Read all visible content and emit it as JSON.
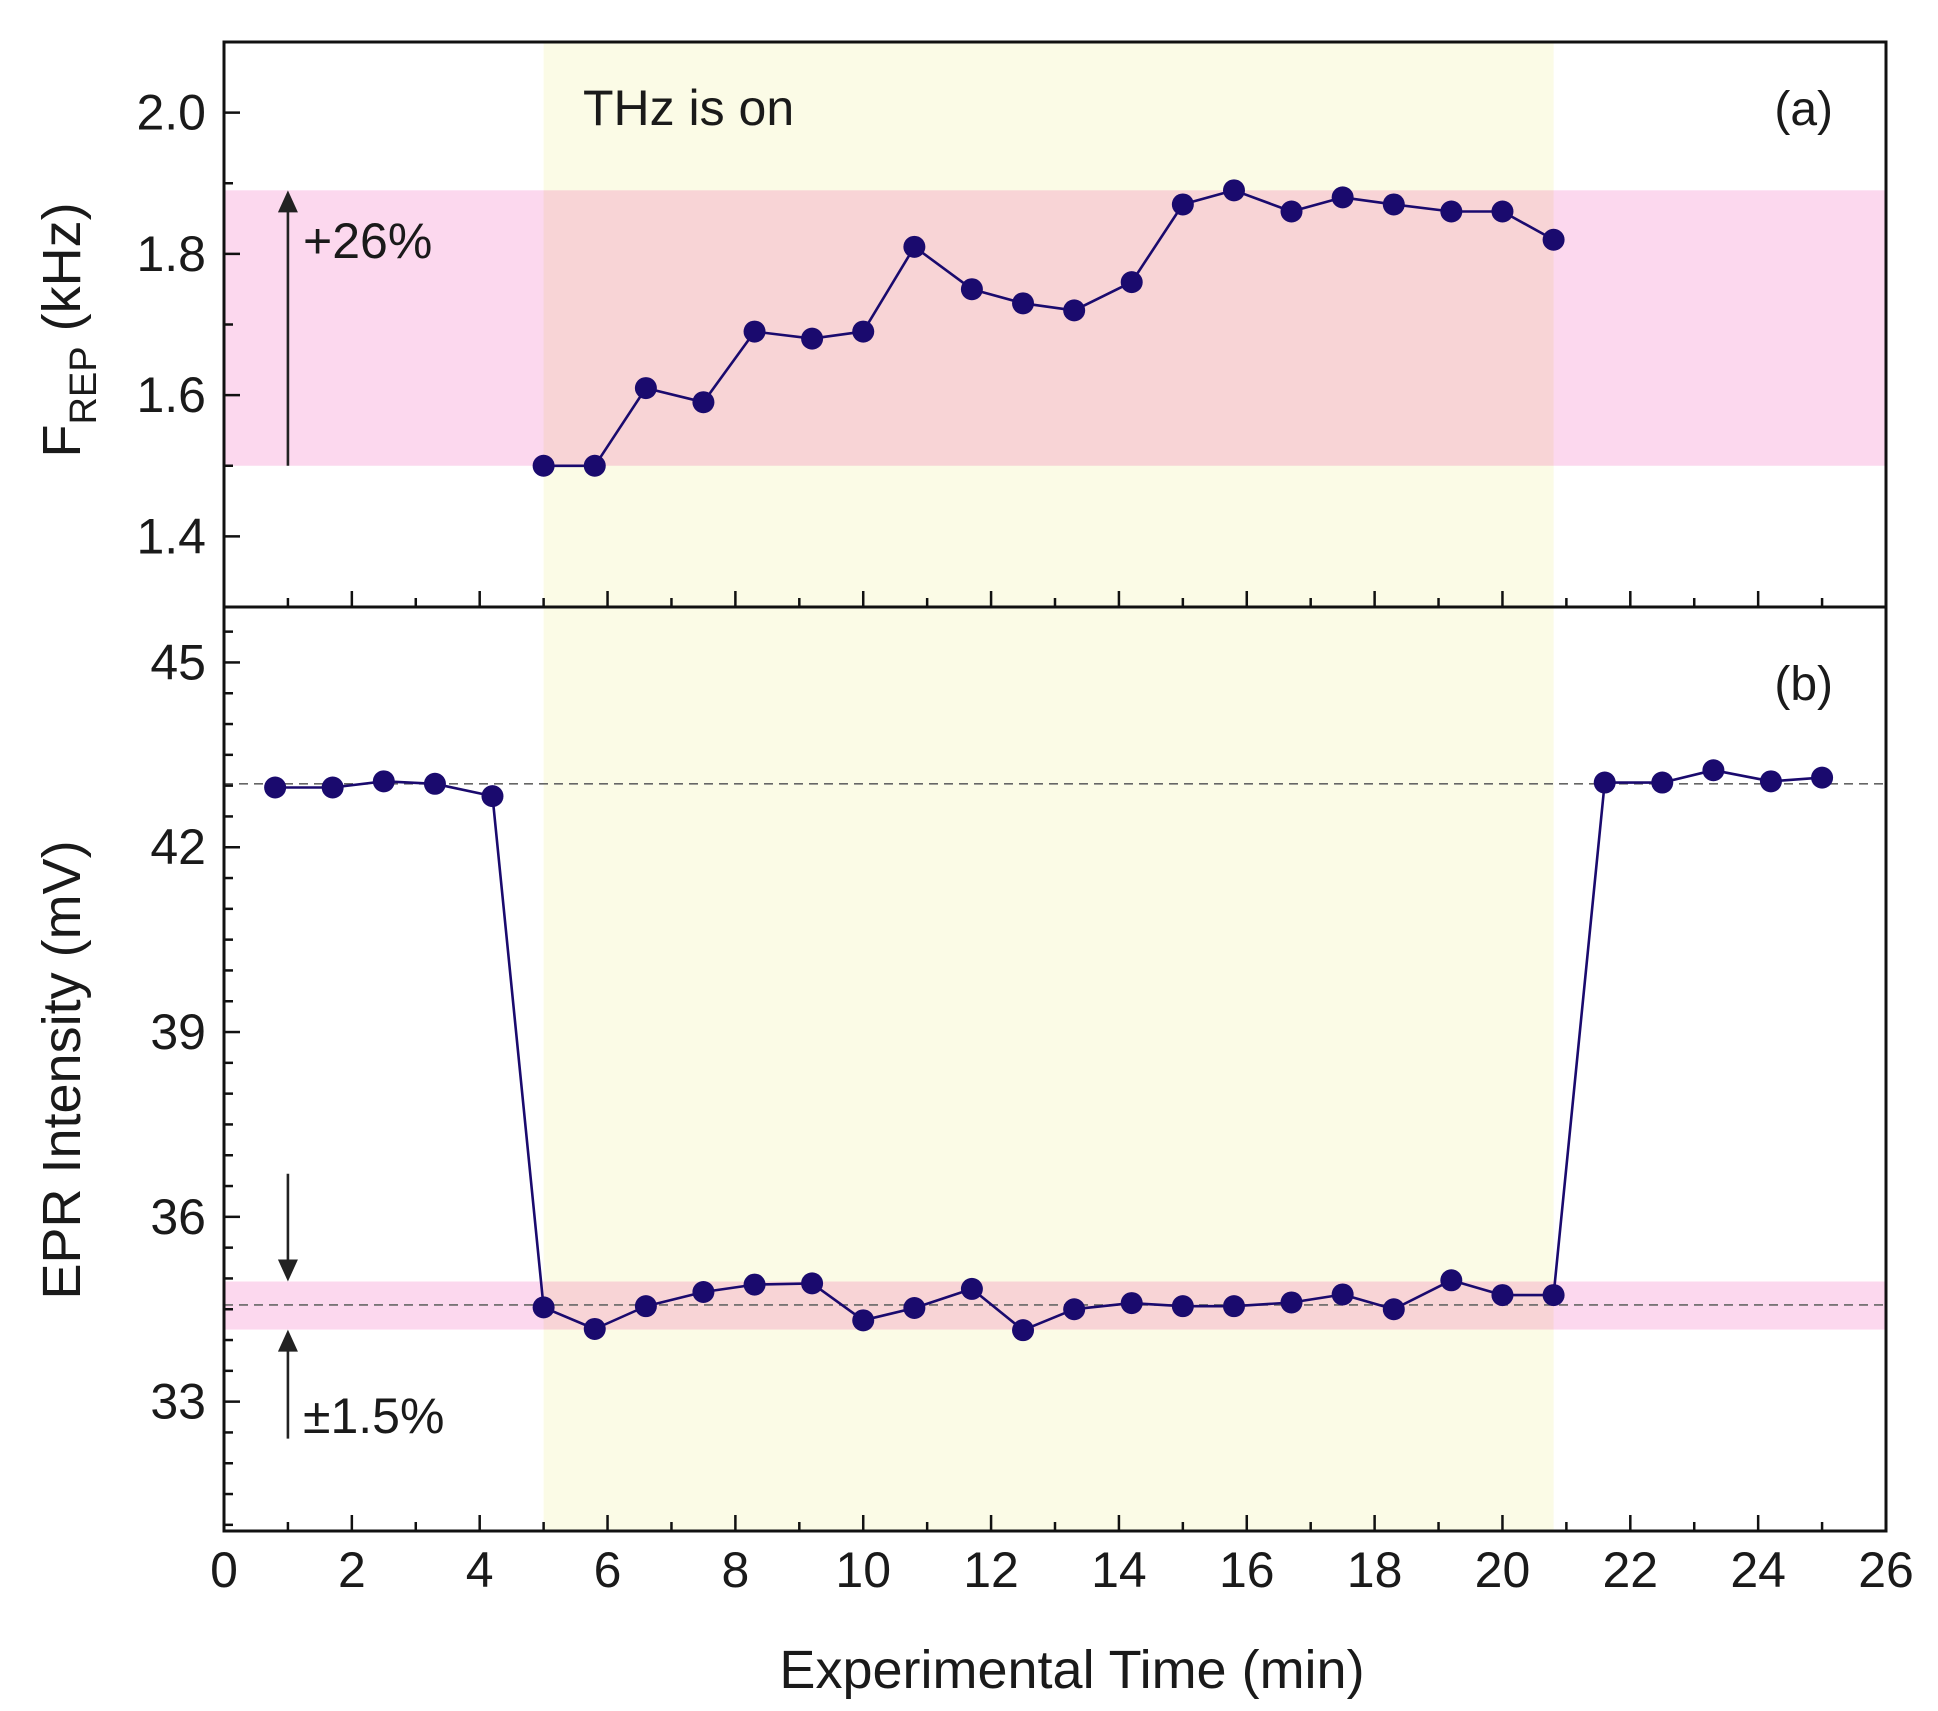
{
  "chart_data": [
    {
      "id": "a",
      "type": "line",
      "panel_label": "(a)",
      "ylabel_main": "F",
      "ylabel_sub": "REP",
      "ylabel_unit": " (kHz)",
      "ylim": [
        1.3,
        2.1
      ],
      "yticks": [
        1.4,
        1.6,
        1.8,
        2.0
      ],
      "ytick_labels": [
        "1.4",
        "1.6",
        "1.8",
        "2.0"
      ],
      "yminor_step": 0.1,
      "annotation_text": "THz is on",
      "band": {
        "y_from": 1.5,
        "y_to": 1.89,
        "color": "#fcd8ee"
      },
      "arrow": {
        "x": 1.0,
        "y_from": 1.5,
        "y_to": 1.89,
        "label": "+26%"
      },
      "series": [
        {
          "name": "F_REP",
          "color": "#1a0a6e",
          "x": [
            5.0,
            5.8,
            6.6,
            7.5,
            8.3,
            9.2,
            10.0,
            10.8,
            11.7,
            12.5,
            13.3,
            14.2,
            15.0,
            15.8,
            16.7,
            17.5,
            18.3,
            19.2,
            20.0,
            20.8
          ],
          "y": [
            1.5,
            1.5,
            1.61,
            1.59,
            1.69,
            1.68,
            1.69,
            1.81,
            1.75,
            1.73,
            1.72,
            1.76,
            1.87,
            1.89,
            1.86,
            1.88,
            1.87,
            1.86,
            1.86,
            1.82
          ]
        }
      ]
    },
    {
      "id": "b",
      "type": "line",
      "panel_label": "(b)",
      "ylabel": "EPR Intensity (mV)",
      "ylim": [
        30.9,
        45.9
      ],
      "yticks": [
        33,
        36,
        39,
        42,
        45
      ],
      "ytick_labels": [
        "33",
        "36",
        "39",
        "42",
        "45"
      ],
      "yminor_step": 0.5,
      "band": {
        "y_from": 34.17,
        "y_to": 34.95,
        "color": "#fcd8ee"
      },
      "ref_lines": [
        43.03,
        34.57
      ],
      "arrows": {
        "x": 1.0,
        "down": {
          "y_from": 36.7,
          "y_to": 34.95
        },
        "up": {
          "y_from": 32.4,
          "y_to": 34.17
        },
        "label": "±1.5%"
      },
      "series": [
        {
          "name": "EPR Intensity",
          "color": "#1a0a6e",
          "x": [
            0.8,
            1.7,
            2.5,
            3.3,
            4.2,
            5.0,
            5.8,
            6.6,
            7.5,
            8.3,
            9.2,
            10.0,
            10.8,
            11.7,
            12.5,
            13.3,
            14.2,
            15.0,
            15.8,
            16.7,
            17.5,
            18.3,
            19.2,
            20.0,
            20.8,
            21.6,
            22.5,
            23.3,
            24.2,
            25.0
          ],
          "y": [
            42.97,
            42.97,
            43.07,
            43.03,
            42.83,
            34.53,
            34.18,
            34.55,
            34.78,
            34.9,
            34.92,
            34.32,
            34.52,
            34.83,
            34.16,
            34.5,
            34.6,
            34.55,
            34.55,
            34.61,
            34.74,
            34.5,
            34.97,
            34.73,
            34.73,
            43.05,
            43.05,
            43.25,
            43.07,
            43.13
          ]
        }
      ]
    }
  ],
  "shared": {
    "xlabel": "Experimental Time (min)",
    "xlim": [
      0,
      26
    ],
    "xticks": [
      0,
      2,
      4,
      6,
      8,
      10,
      12,
      14,
      16,
      18,
      20,
      22,
      24,
      26
    ],
    "xtick_labels": [
      "0",
      "2",
      "4",
      "6",
      "8",
      "10",
      "12",
      "14",
      "16",
      "18",
      "20",
      "22",
      "24",
      "26"
    ],
    "xminor_step": 1,
    "thz_on_x_range": [
      5.0,
      20.8
    ],
    "thz_color": "#fbfbe6"
  }
}
